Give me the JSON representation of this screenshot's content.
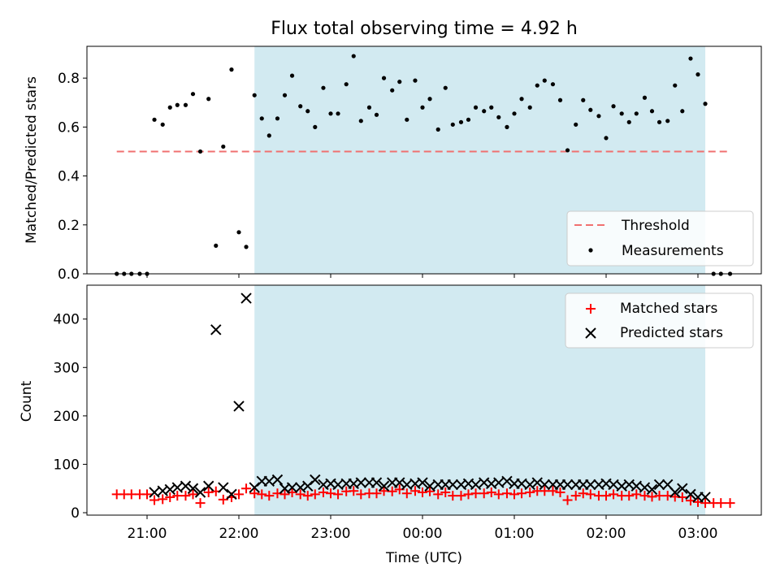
{
  "title": "Flux total observing time = 4.92 h",
  "colors": {
    "shade": "#add8e6",
    "threshold": "#f07070",
    "matched": "#ff0000",
    "predicted": "#000000",
    "measurement": "#000000"
  },
  "chart_data": [
    {
      "type": "scatter",
      "ylabel": "Matched/Predicted stars",
      "xlabel": "",
      "ylim": [
        0,
        0.93
      ],
      "yticks": [
        "0.0",
        "0.2",
        "0.4",
        "0.6",
        "0.8"
      ],
      "shaded_span_hours": [
        22.17,
        27.08
      ],
      "threshold": {
        "name": "Threshold",
        "value": 0.5,
        "x_range_hours": [
          20.67,
          27.35
        ]
      },
      "legend": {
        "position": "lower-right",
        "entries": [
          "Threshold",
          "Measurements"
        ]
      },
      "series": [
        {
          "name": "Measurements",
          "x_hours": [
            20.67,
            20.75,
            20.83,
            20.92,
            21.0,
            21.08,
            21.17,
            21.25,
            21.33,
            21.42,
            21.5,
            21.58,
            21.67,
            21.75,
            21.83,
            21.92,
            22.0,
            22.08,
            22.17,
            22.25,
            22.33,
            22.42,
            22.5,
            22.58,
            22.67,
            22.75,
            22.83,
            22.92,
            23.0,
            23.08,
            23.17,
            23.25,
            23.33,
            23.42,
            23.5,
            23.58,
            23.67,
            23.75,
            23.83,
            23.92,
            24.0,
            24.08,
            24.17,
            24.25,
            24.33,
            24.42,
            24.5,
            24.58,
            24.67,
            24.75,
            24.83,
            24.92,
            25.0,
            25.08,
            25.17,
            25.25,
            25.33,
            25.42,
            25.5,
            25.58,
            25.67,
            25.75,
            25.83,
            25.92,
            26.0,
            26.08,
            26.17,
            26.25,
            26.33,
            26.42,
            26.5,
            26.58,
            26.67,
            26.75,
            26.83,
            26.92,
            27.0,
            27.08,
            27.17,
            27.25,
            27.35
          ],
          "y": [
            0,
            0,
            0,
            0,
            0,
            0.63,
            0.61,
            0.68,
            0.69,
            0.69,
            0.735,
            0.5,
            0.715,
            0.115,
            0.52,
            0.835,
            0.17,
            0.11,
            0.73,
            0.635,
            0.565,
            0.635,
            0.73,
            0.81,
            0.685,
            0.665,
            0.6,
            0.76,
            0.655,
            0.655,
            0.775,
            0.89,
            0.625,
            0.68,
            0.65,
            0.8,
            0.75,
            0.785,
            0.63,
            0.79,
            0.68,
            0.715,
            0.59,
            0.76,
            0.61,
            0.62,
            0.63,
            0.68,
            0.665,
            0.68,
            0.64,
            0.6,
            0.655,
            0.715,
            0.68,
            0.77,
            0.79,
            0.775,
            0.71,
            0.505,
            0.61,
            0.71,
            0.67,
            0.645,
            0.555,
            0.685,
            0.655,
            0.62,
            0.655,
            0.72,
            0.665,
            0.62,
            0.625,
            0.77,
            0.665,
            0.88,
            0.815,
            0.695,
            0,
            0,
            0
          ]
        }
      ]
    },
    {
      "type": "scatter",
      "ylabel": "Count",
      "xlabel": "Time (UTC)",
      "ylim": [
        -5,
        470
      ],
      "yticks": [
        "0",
        "100",
        "200",
        "300",
        "400"
      ],
      "xticks": [
        "21:00",
        "22:00",
        "23:00",
        "00:00",
        "01:00",
        "02:00",
        "03:00"
      ],
      "xtick_hours": [
        21,
        22,
        23,
        24,
        25,
        26,
        27
      ],
      "shaded_span_hours": [
        22.17,
        27.08
      ],
      "legend": {
        "position": "top-right",
        "entries": [
          "Matched stars",
          "Predicted stars"
        ]
      },
      "series": [
        {
          "name": "Matched stars",
          "marker": "plus",
          "x_hours": [
            20.67,
            20.75,
            20.83,
            20.92,
            21.0,
            21.08,
            21.17,
            21.25,
            21.33,
            21.42,
            21.5,
            21.58,
            21.67,
            21.75,
            21.83,
            21.92,
            22.0,
            22.08,
            22.17,
            22.25,
            22.33,
            22.42,
            22.5,
            22.58,
            22.67,
            22.75,
            22.83,
            22.92,
            23.0,
            23.08,
            23.17,
            23.25,
            23.33,
            23.42,
            23.5,
            23.58,
            23.67,
            23.75,
            23.83,
            23.92,
            24.0,
            24.08,
            24.17,
            24.25,
            24.33,
            24.42,
            24.5,
            24.58,
            24.67,
            24.75,
            24.83,
            24.92,
            25.0,
            25.08,
            25.17,
            25.25,
            25.33,
            25.42,
            25.5,
            25.58,
            25.67,
            25.75,
            25.83,
            25.92,
            26.0,
            26.08,
            26.17,
            26.25,
            26.33,
            26.42,
            26.5,
            26.58,
            26.67,
            26.75,
            26.83,
            26.92,
            27.0,
            27.08,
            27.17,
            27.25,
            27.35
          ],
          "y": [
            38,
            38,
            38,
            38,
            38,
            26,
            28,
            32,
            35,
            35,
            38,
            20,
            42,
            44,
            27,
            32,
            38,
            50,
            40,
            38,
            35,
            40,
            38,
            42,
            38,
            35,
            38,
            42,
            40,
            38,
            44,
            45,
            38,
            40,
            40,
            45,
            44,
            48,
            40,
            45,
            42,
            44,
            38,
            42,
            35,
            35,
            38,
            40,
            40,
            42,
            38,
            40,
            38,
            40,
            42,
            45,
            45,
            45,
            42,
            26,
            35,
            40,
            38,
            35,
            35,
            38,
            35,
            35,
            38,
            35,
            33,
            35,
            35,
            33,
            32,
            25,
            22,
            20,
            20,
            20,
            20
          ]
        },
        {
          "name": "Predicted stars",
          "marker": "x",
          "x_hours": [
            21.08,
            21.17,
            21.25,
            21.33,
            21.42,
            21.5,
            21.58,
            21.67,
            21.75,
            21.83,
            21.92,
            22.0,
            22.08,
            22.17,
            22.25,
            22.33,
            22.42,
            22.5,
            22.58,
            22.67,
            22.75,
            22.83,
            22.92,
            23.0,
            23.08,
            23.17,
            23.25,
            23.33,
            23.42,
            23.5,
            23.58,
            23.67,
            23.75,
            23.83,
            23.92,
            24.0,
            24.08,
            24.17,
            24.25,
            24.33,
            24.42,
            24.5,
            24.58,
            24.67,
            24.75,
            24.83,
            24.92,
            25.0,
            25.08,
            25.17,
            25.25,
            25.33,
            25.42,
            25.5,
            25.58,
            25.67,
            25.75,
            25.83,
            25.92,
            26.0,
            26.08,
            26.17,
            26.25,
            26.33,
            26.42,
            26.5,
            26.58,
            26.67,
            26.75,
            26.83,
            26.92,
            27.0,
            27.08
          ],
          "y": [
            42,
            45,
            48,
            52,
            55,
            50,
            42,
            55,
            378,
            52,
            38,
            220,
            443,
            52,
            65,
            65,
            68,
            50,
            52,
            52,
            55,
            68,
            58,
            60,
            58,
            60,
            60,
            62,
            62,
            62,
            55,
            62,
            62,
            58,
            60,
            62,
            55,
            58,
            58,
            58,
            58,
            60,
            58,
            62,
            60,
            62,
            65,
            60,
            60,
            58,
            62,
            58,
            58,
            58,
            58,
            58,
            58,
            58,
            58,
            60,
            58,
            55,
            58,
            55,
            52,
            48,
            58,
            58,
            42,
            50,
            38,
            32,
            32
          ]
        }
      ]
    }
  ]
}
